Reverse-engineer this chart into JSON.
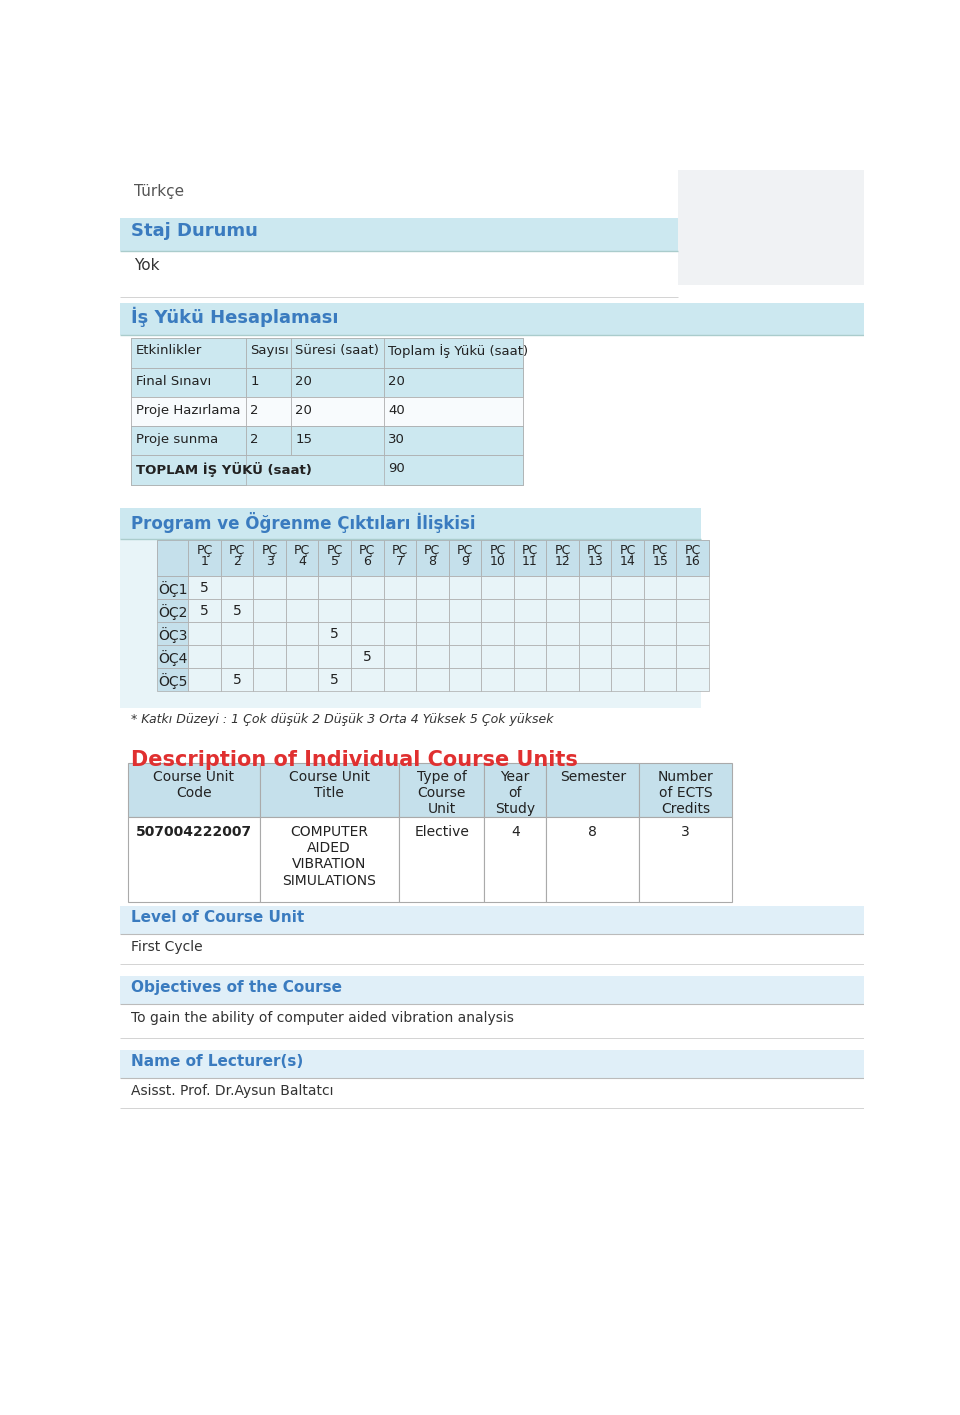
{
  "bg_color": "#ffffff",
  "light_blue_bg": "#cce8f0",
  "header_blue": "#3a7bbf",
  "section_blue": "#3a7bbf",
  "red_title": "#e03030",
  "cell_border": "#aaaaaa",
  "gray_bg": "#f0f2f4",
  "turkce_text": "Türkçe",
  "staj_title": "Staj Durumu",
  "staj_value": "Yok",
  "is_title": "İş Yükü Hesaplaması",
  "is_headers": [
    "Etkinlikler",
    "Sayısı",
    "Süresi (saat)",
    "Toplam İş Yükü (saat)"
  ],
  "is_rows": [
    [
      "Final Sınavı",
      "1",
      "20",
      "20"
    ],
    [
      "Proje Hazırlama",
      "2",
      "20",
      "40"
    ],
    [
      "Proje sunma",
      "2",
      "15",
      "30"
    ],
    [
      "TOPLAM İŞ YÜKÜ (saat)",
      "",
      "",
      "90"
    ]
  ],
  "program_title": "Program ve Öğrenme Çıktıları İlişkisi",
  "oc_rows": [
    [
      "ÖÇ1",
      "5",
      "",
      "",
      "",
      "",
      "",
      "",
      "",
      "",
      "",
      "",
      "",
      "",
      "",
      "",
      ""
    ],
    [
      "ÖÇ2",
      "5",
      "5",
      "",
      "",
      "",
      "",
      "",
      "",
      "",
      "",
      "",
      "",
      "",
      "",
      "",
      ""
    ],
    [
      "ÖÇ3",
      "",
      "",
      "",
      "",
      "5",
      "",
      "",
      "",
      "",
      "",
      "",
      "",
      "",
      "",
      "",
      ""
    ],
    [
      "ÖÇ4",
      "",
      "",
      "",
      "",
      "",
      "5",
      "",
      "",
      "",
      "",
      "",
      "",
      "",
      "",
      "",
      ""
    ],
    [
      "ÖÇ5",
      "",
      "5",
      "",
      "",
      "5",
      "",
      "",
      "",
      "",
      "",
      "",
      "",
      "",
      "",
      "",
      ""
    ]
  ],
  "katki_text": "* Katkı Düzeyi : 1 Çok düşük 2 Düşük 3 Orta 4 Yüksek 5 Çok yüksek",
  "desc_title": "Description of Individual Course Units",
  "desc_headers": [
    "Course Unit\nCode",
    "Course Unit\nTitle",
    "Type of\nCourse\nUnit",
    "Year\nof\nStudy",
    "Semester",
    "Number\nof ECTS\nCredits"
  ],
  "desc_row": [
    "507004222007",
    "COMPUTER\nAIDED\nVIBRATION\nSIMULATIONS",
    "Elective",
    "4",
    "8",
    "3"
  ],
  "level_title": "Level of Course Unit",
  "level_value": "First Cycle",
  "obj_title": "Objectives of the Course",
  "obj_value": "To gain the ability of computer aided vibration analysis",
  "lecturer_title": "Name of Lecturer(s)",
  "lecturer_value": "Asisst. Prof. Dr.Aysun Baltatcı"
}
